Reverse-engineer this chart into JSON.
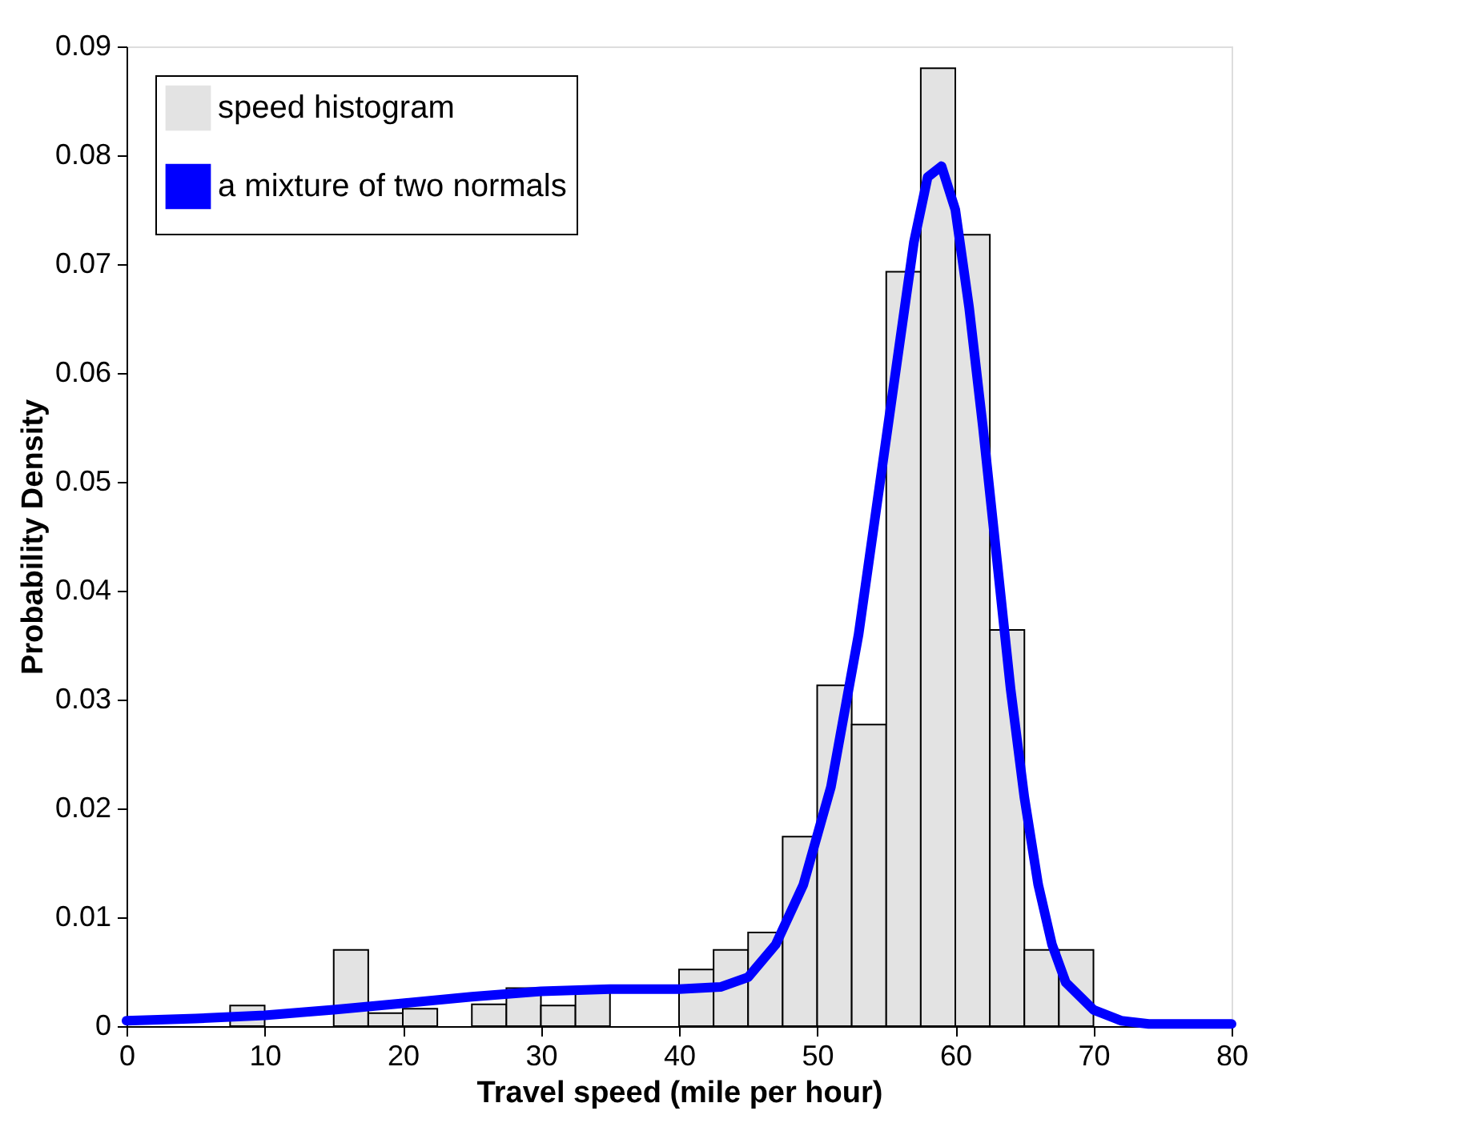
{
  "chart_data": {
    "type": "histogram",
    "xlabel": "Travel speed (mile per hour)",
    "ylabel": "Probability Density",
    "bins": [
      7.5,
      10,
      12.5,
      15,
      17.5,
      20,
      22.5,
      25,
      27.5,
      30,
      32.5,
      35,
      37.5,
      40,
      42.5,
      45,
      47.5,
      50,
      52.5,
      55,
      57.5,
      60,
      62.5,
      65,
      67.5,
      70
    ],
    "series": [
      {
        "name": "speed histogram",
        "color": "#e3e3e3",
        "values": [
          0.0019,
          0,
          0,
          0.007,
          0.0012,
          0.0016,
          0,
          0.002,
          0.0035,
          0.0019,
          0.0032,
          0,
          0,
          0.0052,
          0.007,
          0.0086,
          0.0174,
          0.0313,
          0.0277,
          0.0693,
          0.088,
          0.0727,
          0.0364,
          0.007,
          0.007
        ]
      },
      {
        "name": "a mixture of two normals",
        "type": "line",
        "color": "#0000ff",
        "x": [
          0,
          5,
          10,
          15,
          20,
          25,
          30,
          35,
          40,
          43,
          45,
          47,
          49,
          51,
          53,
          55,
          56,
          57,
          58,
          59,
          60,
          61,
          62,
          63,
          64,
          65,
          66,
          67,
          68,
          70,
          72,
          74,
          80
        ],
        "values": [
          0.0005,
          0.0007,
          0.001,
          0.0015,
          0.0021,
          0.0027,
          0.0032,
          0.0034,
          0.0034,
          0.0036,
          0.0045,
          0.0075,
          0.013,
          0.022,
          0.036,
          0.054,
          0.063,
          0.072,
          0.078,
          0.079,
          0.075,
          0.066,
          0.055,
          0.043,
          0.031,
          0.021,
          0.013,
          0.0075,
          0.004,
          0.0015,
          0.0005,
          0.0002,
          0.0002
        ]
      }
    ],
    "xlim": [
      0,
      80
    ],
    "xticks": [
      0,
      10,
      20,
      30,
      40,
      50,
      60,
      70,
      80
    ],
    "ylim": [
      0,
      0.09
    ],
    "yticks": [
      0,
      0.01,
      0.02,
      0.03,
      0.04,
      0.05,
      0.06,
      0.07,
      0.08,
      0.09
    ],
    "grid": false,
    "legend": "top left"
  }
}
